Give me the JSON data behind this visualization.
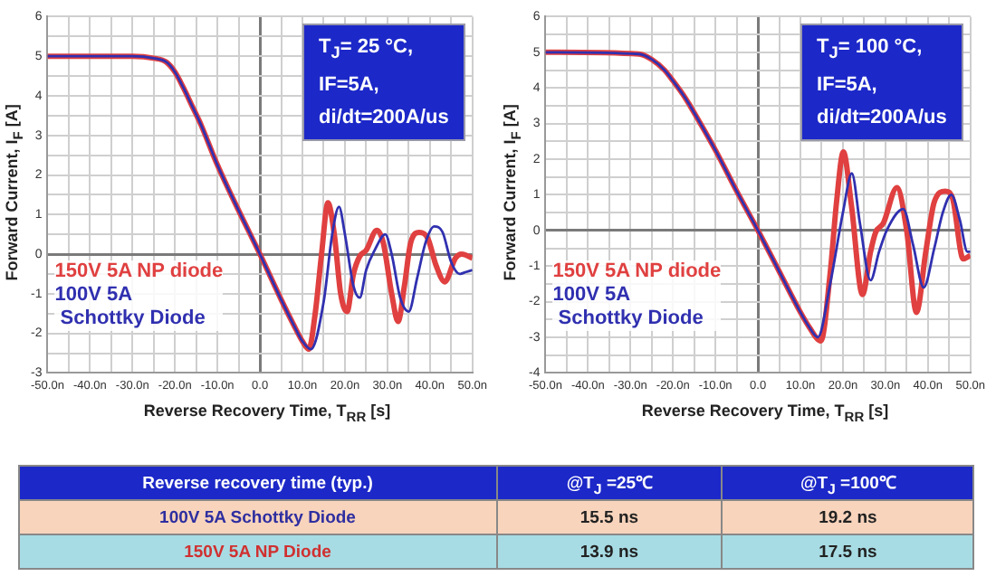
{
  "chart_data": [
    {
      "type": "line",
      "xlabel": "Reverse Recovery Time, T$_{RR}$ [s]",
      "ylabel": "Forward Current, I$_{F}$ [A]",
      "xlim": [
        -50,
        50
      ],
      "ylim": [
        -3,
        6
      ],
      "xticks": [
        {
          "value": -50,
          "label": "-50.0n"
        },
        {
          "value": -45,
          "label": null
        },
        {
          "value": -40,
          "label": "-40.0n"
        },
        {
          "value": -35,
          "label": null
        },
        {
          "value": -30,
          "label": "-30.0n"
        },
        {
          "value": -25,
          "label": null
        },
        {
          "value": -20,
          "label": "-20.0n"
        },
        {
          "value": -15,
          "label": null
        },
        {
          "value": -10,
          "label": "-10.0n"
        },
        {
          "value": -5,
          "label": null
        },
        {
          "value": 0,
          "label": "0.0"
        },
        {
          "value": 5,
          "label": null
        },
        {
          "value": 10,
          "label": "10.0n"
        },
        {
          "value": 15,
          "label": null
        },
        {
          "value": 20,
          "label": "20.0n"
        },
        {
          "value": 25,
          "label": null
        },
        {
          "value": 30,
          "label": "30.0n"
        },
        {
          "value": 35,
          "label": null
        },
        {
          "value": 40,
          "label": "40.0n"
        },
        {
          "value": 45,
          "label": null
        },
        {
          "value": 50,
          "label": "50.0n"
        }
      ],
      "yticks": [
        -3,
        {
          "value": -2.5,
          "label": null
        },
        -2,
        {
          "value": -1.5,
          "label": null
        },
        -1,
        {
          "value": -0.5,
          "label": null
        },
        0,
        {
          "value": 0.5,
          "label": null
        },
        1,
        {
          "value": 1.5,
          "label": null
        },
        2,
        {
          "value": 2.5,
          "label": null
        },
        3,
        {
          "value": 3.5,
          "label": null
        },
        4,
        {
          "value": 4.5,
          "label": null
        },
        5,
        {
          "value": 5.5,
          "label": null
        },
        6
      ],
      "grid": true,
      "legend": false,
      "marker": "none",
      "line_style": "solid",
      "annotations": [
        "T$_{J}$= 25 °C,",
        "IF=5A,",
        "di/dt=200A/us"
      ],
      "series": [
        {
          "name": "150V 5A NP diode",
          "color": "#e04040",
          "x": [
            -50,
            -30,
            -25,
            -22,
            -20,
            -18,
            -16,
            -14,
            -10,
            -5,
            0,
            5,
            8,
            10,
            11.5,
            13,
            14.5,
            16,
            17.5,
            19,
            20.5,
            22,
            23.5,
            25,
            27.5,
            29,
            31,
            32.5,
            34,
            35.5,
            37.5,
            39.5,
            41.5,
            43.5,
            46,
            47.5,
            50
          ],
          "values": [
            5,
            5,
            4.95,
            4.85,
            4.6,
            4.2,
            3.75,
            3.3,
            2.25,
            1.1,
            0,
            -1.15,
            -1.8,
            -2.2,
            -2.4,
            -1.5,
            0,
            1.3,
            0.5,
            -1,
            -1.45,
            -0.5,
            -0.05,
            0.1,
            0.6,
            0.3,
            -1,
            -1.7,
            -0.8,
            0.3,
            0.55,
            0.4,
            -0.3,
            -0.7,
            -0.1,
            0,
            -0.1
          ]
        },
        {
          "name": "100V 5A\n Schottky Diode",
          "color": "#3030b0",
          "x": [
            -50,
            -30,
            -25,
            -22,
            -20,
            -18,
            -16,
            -14,
            -10,
            -5,
            0,
            5,
            8,
            10,
            12,
            15,
            17,
            18.6,
            20,
            22,
            23.5,
            25,
            27,
            29.5,
            31,
            33,
            35,
            37,
            39,
            41,
            43,
            45,
            47,
            48.5,
            50
          ],
          "values": [
            5,
            5,
            4.95,
            4.85,
            4.6,
            4.2,
            3.75,
            3.3,
            2.25,
            1.1,
            0,
            -1.15,
            -1.8,
            -2.2,
            -2.4,
            -1.2,
            0.5,
            1.2,
            0.5,
            -0.8,
            -1.1,
            -0.4,
            0.1,
            0.5,
            0,
            -1.1,
            -1.45,
            -0.6,
            0.3,
            0.7,
            0.55,
            -0.2,
            -0.5,
            -0.45,
            -0.4
          ]
        }
      ]
    },
    {
      "type": "line",
      "xlabel": "Reverse Recovery Time, T$_{RR}$ [s]",
      "ylabel": "Forward Current, I$_{F}$ [A]",
      "xlim": [
        -50,
        50
      ],
      "ylim": [
        -4,
        6
      ],
      "xticks": [
        {
          "value": -50,
          "label": "-50.0n"
        },
        {
          "value": -45,
          "label": null
        },
        {
          "value": -40,
          "label": "-40.0n"
        },
        {
          "value": -35,
          "label": null
        },
        {
          "value": -30,
          "label": "-30.0n"
        },
        {
          "value": -25,
          "label": null
        },
        {
          "value": -20,
          "label": "-20.0n"
        },
        {
          "value": -15,
          "label": null
        },
        {
          "value": -10,
          "label": "-10.0n"
        },
        {
          "value": -5,
          "label": null
        },
        {
          "value": 0,
          "label": "0.0"
        },
        {
          "value": 5,
          "label": null
        },
        {
          "value": 10,
          "label": "10.0n"
        },
        {
          "value": 15,
          "label": null
        },
        {
          "value": 20,
          "label": "20.0n"
        },
        {
          "value": 25,
          "label": null
        },
        {
          "value": 30,
          "label": "30.0n"
        },
        {
          "value": 35,
          "label": null
        },
        {
          "value": 40,
          "label": "40.0n"
        },
        {
          "value": 45,
          "label": null
        },
        {
          "value": 50,
          "label": "50.0n"
        }
      ],
      "yticks": [
        -4,
        {
          "value": -3.5,
          "label": null
        },
        -3,
        {
          "value": -2.5,
          "label": null
        },
        -2,
        {
          "value": -1.5,
          "label": null
        },
        -1,
        {
          "value": -0.5,
          "label": null
        },
        0,
        {
          "value": 0.5,
          "label": null
        },
        1,
        {
          "value": 1.5,
          "label": null
        },
        2,
        {
          "value": 2.5,
          "label": null
        },
        3,
        {
          "value": 3.5,
          "label": null
        },
        4,
        {
          "value": 4.5,
          "label": null
        },
        5,
        {
          "value": 5.5,
          "label": null
        },
        6
      ],
      "grid": true,
      "legend": false,
      "marker": "none",
      "line_style": "solid",
      "annotations": [
        "T$_{J}$= 100 °C,",
        "IF=5A,",
        "di/dt=200A/us"
      ],
      "series": [
        {
          "name": "150V 5A NP diode",
          "color": "#e04040",
          "x": [
            -50,
            -28,
            -25,
            -22,
            -20,
            -17,
            -15,
            -10,
            -5,
            0,
            5,
            10,
            12,
            14.8,
            17,
            18.5,
            20.1,
            22,
            24.6,
            26.5,
            27.7,
            29.5,
            32.7,
            35,
            37.3,
            39.5,
            41.5,
            44.1,
            45.8,
            48.3,
            50
          ],
          "values": [
            5,
            4.95,
            4.8,
            4.5,
            4.2,
            3.7,
            3.3,
            2.25,
            1.1,
            0,
            -1.15,
            -2.3,
            -2.7,
            -3.1,
            -1.2,
            0.8,
            2.2,
            0.7,
            -1.8,
            -0.6,
            -0.05,
            0.2,
            1.2,
            0,
            -2.3,
            -0.6,
            0.8,
            1.1,
            0.9,
            -0.8,
            -0.7
          ]
        },
        {
          "name": "100V 5A\n Schottky Diode",
          "color": "#3030b0",
          "x": [
            -50,
            -28,
            -25,
            -22,
            -20,
            -17,
            -15,
            -10,
            -5,
            0,
            5,
            10,
            12,
            14.1,
            17,
            20,
            22.1,
            24,
            26.5,
            28.5,
            30.3,
            34.2,
            36.5,
            39,
            41.5,
            43.5,
            45.5,
            47.5,
            49.3,
            50
          ],
          "values": [
            5,
            4.95,
            4.8,
            4.5,
            4.2,
            3.7,
            3.3,
            2.25,
            1.1,
            0,
            -1.15,
            -2.3,
            -2.7,
            -3,
            -1.5,
            0.5,
            1.6,
            0.2,
            -1.4,
            -0.6,
            0,
            0.6,
            -0.4,
            -1.6,
            -0.5,
            0.5,
            1,
            0.3,
            -0.6,
            -0.6
          ]
        }
      ]
    },
    {
      "type": "other",
      "title": "Reverse recovery time (typ.)",
      "categories": [
        "@T$_{J}$ =25℃",
        "@T$_{J}$ =100℃"
      ],
      "series": [
        {
          "name": "100V  5A Schottky Diode",
          "values": [
            15.5,
            19.2
          ],
          "value_labels": [
            "15.5 ns",
            "19.2 ns"
          ]
        },
        {
          "name": "150V 5A NP Diode",
          "values": [
            13.9,
            17.5
          ],
          "value_labels": [
            "13.9 ns",
            "17.5 ns"
          ]
        }
      ]
    }
  ]
}
